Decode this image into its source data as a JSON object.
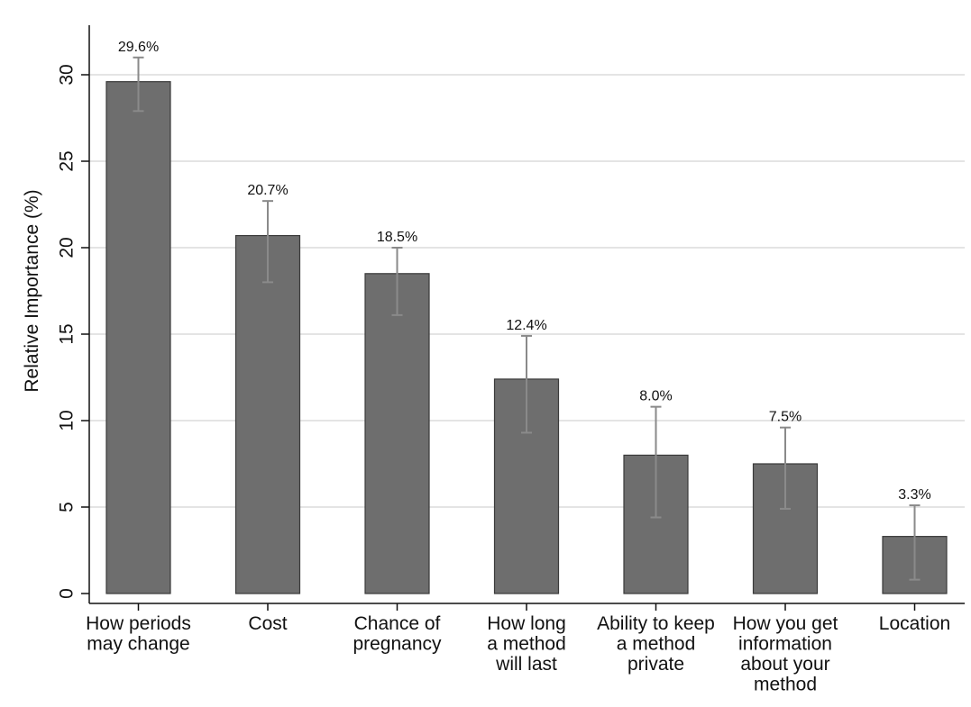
{
  "chart_data": {
    "type": "bar",
    "title": "",
    "xlabel": "",
    "ylabel": "Relative Importance (%)",
    "ylim": [
      0,
      32.5
    ],
    "yticks": [
      0,
      5,
      10,
      15,
      20,
      25,
      30
    ],
    "grid": true,
    "categories": [
      [
        "How periods",
        "may change"
      ],
      [
        "Cost"
      ],
      [
        "Chance of",
        "pregnancy"
      ],
      [
        "How long",
        "a method",
        "will last"
      ],
      [
        "Ability to keep",
        "a method",
        "private"
      ],
      [
        "How you get",
        "information",
        "about your",
        "method"
      ],
      [
        "Location"
      ]
    ],
    "values": [
      29.6,
      20.7,
      18.5,
      12.4,
      8.0,
      7.5,
      3.3
    ],
    "labels": [
      "29.6%",
      "20.7%",
      "18.5%",
      "12.4%",
      "8.0%",
      "7.5%",
      "3.3%"
    ],
    "error_low": [
      27.9,
      18.0,
      16.1,
      9.3,
      4.4,
      4.9,
      0.8
    ],
    "error_high": [
      31.0,
      22.7,
      20.0,
      14.9,
      10.8,
      9.6,
      5.1
    ],
    "colors": {
      "bar": "#6e6e6e",
      "bar_edge": "#3a3a3a",
      "error": "#8a8a8a",
      "grid": "#dcdcdc",
      "axis": "#111111"
    }
  }
}
